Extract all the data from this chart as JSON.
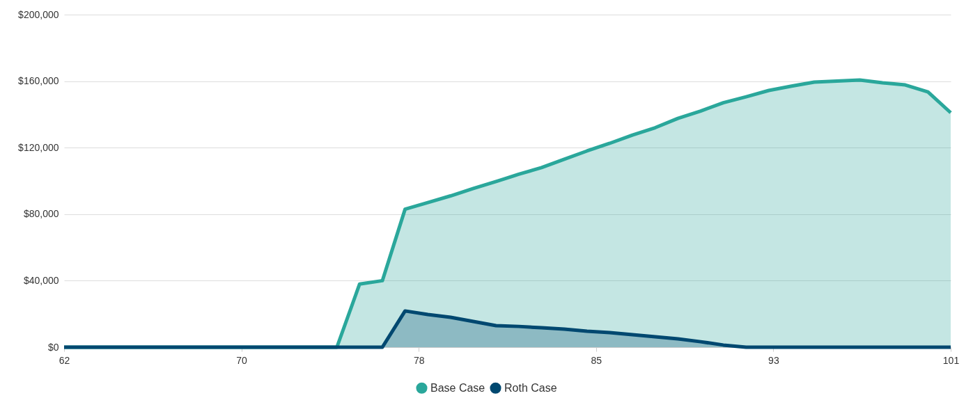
{
  "chart_data": {
    "type": "area",
    "x": [
      62,
      63,
      64,
      65,
      66,
      67,
      68,
      69,
      70,
      71,
      72,
      73,
      74,
      75,
      76,
      77,
      78,
      79,
      80,
      81,
      82,
      83,
      84,
      85,
      86,
      87,
      88,
      89,
      90,
      91,
      92,
      93,
      94,
      95,
      96,
      97,
      98,
      99,
      100,
      101
    ],
    "series": [
      {
        "name": "Base Case",
        "color": "#2aa79b",
        "values": [
          0,
          0,
          0,
          0,
          0,
          0,
          0,
          0,
          0,
          0,
          0,
          0,
          0,
          38000,
          40000,
          83000,
          87000,
          91000,
          95400,
          99600,
          104000,
          108000,
          113000,
          118000,
          122600,
          127600,
          132000,
          137600,
          142000,
          147000,
          150600,
          154400,
          157000,
          159400,
          160000,
          160700,
          159000,
          157700,
          153500,
          141000
        ]
      },
      {
        "name": "Roth Case",
        "color": "#004870",
        "values": [
          0,
          0,
          0,
          0,
          0,
          0,
          0,
          0,
          0,
          0,
          0,
          0,
          0,
          0,
          0,
          21800,
          19700,
          18000,
          15500,
          13000,
          12500,
          11700,
          10900,
          9600,
          8800,
          7500,
          6300,
          5000,
          3300,
          1300,
          0,
          0,
          0,
          0,
          0,
          0,
          0,
          0,
          0,
          0
        ]
      }
    ],
    "xlim": [
      62,
      101
    ],
    "xticks": [
      62,
      {
        "value": 69.8,
        "label": "70"
      },
      {
        "value": 77.6,
        "label": "78"
      },
      {
        "value": 85.4,
        "label": "85"
      },
      {
        "value": 93.2,
        "label": "93"
      },
      101
    ],
    "ylim": [
      0,
      200000
    ],
    "yticks": [
      {
        "value": 0,
        "label": "$0"
      },
      {
        "value": 40000,
        "label": "$40,000"
      },
      {
        "value": 80000,
        "label": "$80,000"
      },
      {
        "value": 120000,
        "label": "$120,000"
      },
      {
        "value": 160000,
        "label": "$160,000"
      },
      {
        "value": 200000,
        "label": "$200,000"
      }
    ],
    "grid": "y",
    "legend": "bottom"
  }
}
